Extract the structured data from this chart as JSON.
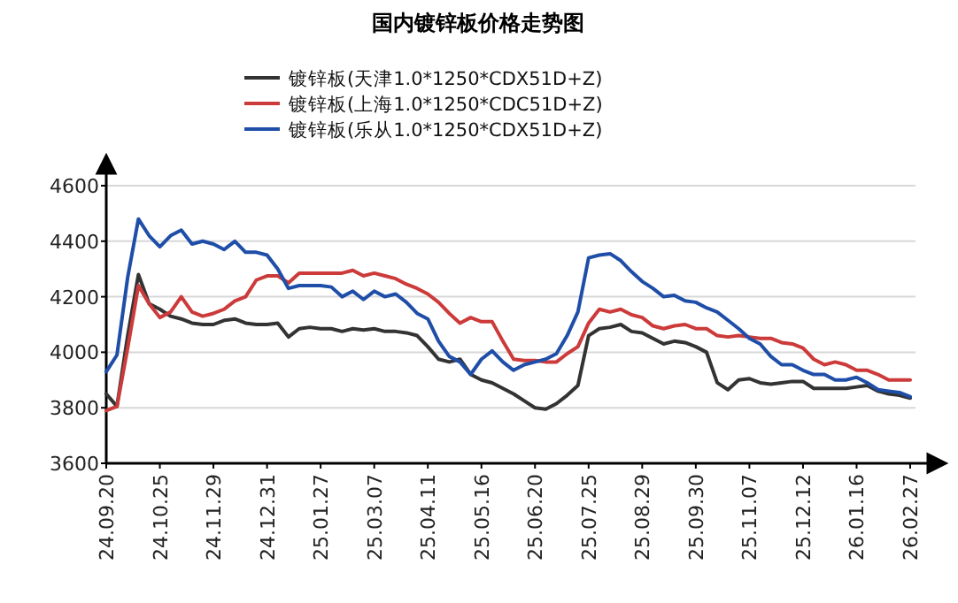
{
  "chart_data": {
    "type": "line",
    "title": "国内镀锌板价格走势图",
    "categories": [
      "24.09.20",
      null,
      null,
      null,
      null,
      "24.10.25",
      null,
      null,
      null,
      null,
      "24.11.29",
      null,
      null,
      null,
      null,
      "24.12.31",
      null,
      null,
      null,
      null,
      "25.01.27",
      null,
      null,
      null,
      null,
      "25.03.07",
      null,
      null,
      null,
      null,
      "25.04.11",
      null,
      null,
      null,
      null,
      "25.05.16",
      null,
      null,
      null,
      null,
      "25.06.20",
      null,
      null,
      null,
      null,
      "25.07.25",
      null,
      null,
      null,
      null,
      "25.08.29",
      null,
      null,
      null,
      null,
      "25.09.30",
      null,
      null,
      null,
      null,
      "25.11.07",
      null,
      null,
      null,
      null,
      "25.12.12",
      null,
      null,
      null,
      null,
      "26.01.16",
      null,
      null,
      null,
      null,
      "26.02.27"
    ],
    "series": [
      {
        "name": "镀锌板(天津1.0*1250*CDX51D+Z)",
        "color": "#333333",
        "values": [
          3850,
          3805,
          4060,
          4280,
          4175,
          4155,
          4130,
          4120,
          4105,
          4100,
          4100,
          4115,
          4120,
          4105,
          4100,
          4100,
          4105,
          4055,
          4085,
          4090,
          4085,
          4085,
          4075,
          4085,
          4080,
          4085,
          4075,
          4075,
          4070,
          4060,
          4020,
          3975,
          3965,
          3975,
          3920,
          3900,
          3890,
          3870,
          3850,
          3825,
          3800,
          3795,
          3815,
          3845,
          3880,
          4060,
          4085,
          4090,
          4100,
          4075,
          4070,
          4050,
          4030,
          4040,
          4035,
          4020,
          4000,
          3890,
          3865,
          3900,
          3905,
          3890,
          3885,
          3890,
          3895,
          3895,
          3870,
          3870,
          3870,
          3870,
          3875,
          3880,
          3860,
          3850,
          3845,
          3835
        ]
      },
      {
        "name": "镀锌板(上海1.0*1250*CDC51D+Z)",
        "color": "#cc3a3a",
        "values": [
          3790,
          3805,
          4015,
          4240,
          4175,
          4125,
          4145,
          4200,
          4145,
          4130,
          4140,
          4155,
          4185,
          4200,
          4260,
          4275,
          4275,
          4250,
          4285,
          4285,
          4285,
          4285,
          4285,
          4295,
          4275,
          4285,
          4275,
          4265,
          4245,
          4230,
          4210,
          4180,
          4140,
          4105,
          4125,
          4110,
          4110,
          4040,
          3975,
          3970,
          3970,
          3965,
          3965,
          3995,
          4020,
          4105,
          4155,
          4145,
          4155,
          4135,
          4125,
          4095,
          4085,
          4095,
          4100,
          4085,
          4085,
          4060,
          4055,
          4060,
          4055,
          4050,
          4050,
          4035,
          4030,
          4015,
          3975,
          3955,
          3965,
          3955,
          3935,
          3935,
          3920,
          3900,
          3900,
          3900
        ]
      },
      {
        "name": "镀锌板(乐从1.0*1250*CDX51D+Z)",
        "color": "#1f4ea8",
        "values": [
          3930,
          3990,
          4270,
          4480,
          4420,
          4380,
          4420,
          4440,
          4390,
          4400,
          4390,
          4370,
          4400,
          4360,
          4360,
          4350,
          4300,
          4230,
          4240,
          4240,
          4240,
          4235,
          4200,
          4220,
          4190,
          4220,
          4200,
          4210,
          4180,
          4140,
          4120,
          4040,
          3985,
          3965,
          3920,
          3975,
          4005,
          3965,
          3935,
          3955,
          3965,
          3975,
          3995,
          4060,
          4145,
          4340,
          4350,
          4355,
          4330,
          4290,
          4255,
          4230,
          4200,
          4205,
          4185,
          4180,
          4160,
          4145,
          4115,
          4085,
          4050,
          4030,
          3985,
          3955,
          3955,
          3935,
          3920,
          3920,
          3900,
          3900,
          3910,
          3890,
          3865,
          3860,
          3855,
          3840
        ]
      }
    ],
    "ylim": [
      3600,
      4600
    ],
    "yticks": [
      3600,
      3800,
      4000,
      4200,
      4400,
      4600
    ],
    "grid": "y",
    "legend": "top",
    "marker": "none",
    "line_style": "solid"
  }
}
